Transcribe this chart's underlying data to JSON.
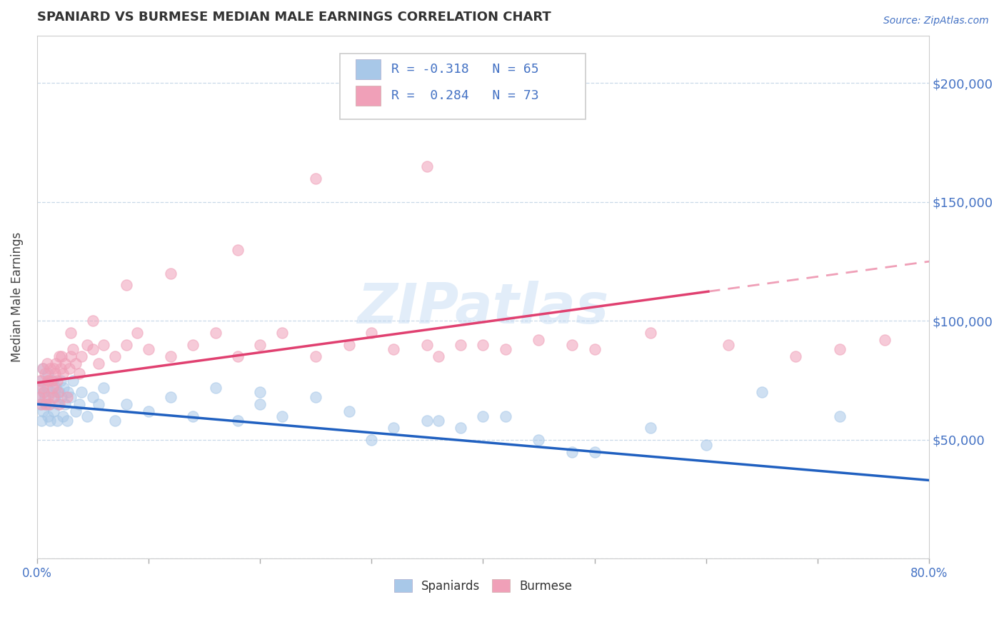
{
  "title": "SPANIARD VS BURMESE MEDIAN MALE EARNINGS CORRELATION CHART",
  "source": "Source: ZipAtlas.com",
  "ylabel": "Median Male Earnings",
  "xlim": [
    0.0,
    80.0
  ],
  "ylim": [
    0,
    220000
  ],
  "yticks": [
    0,
    50000,
    100000,
    150000,
    200000
  ],
  "ytick_labels": [
    "",
    "$50,000",
    "$100,000",
    "$150,000",
    "$200,000"
  ],
  "spaniards_color": "#A8C8E8",
  "burmese_color": "#F0A0B8",
  "spaniards_line_color": "#2060C0",
  "burmese_line_color": "#E04070",
  "spaniards_R": -0.318,
  "spaniards_N": 65,
  "burmese_R": 0.284,
  "burmese_N": 73,
  "watermark": "ZIPatlas",
  "background_color": "#FFFFFF",
  "grid_color": "#C8D8E8",
  "scatter_alpha": 0.55,
  "scatter_size": 120,
  "sp_line_x0": 0,
  "sp_line_y0": 65000,
  "sp_line_x1": 80,
  "sp_line_y1": 33000,
  "bm_line_x0": 0,
  "bm_line_y0": 74000,
  "bm_line_x1": 80,
  "bm_line_y1": 125000,
  "bm_dash_start_x": 60,
  "spaniards_x": [
    0.2,
    0.3,
    0.3,
    0.4,
    0.4,
    0.5,
    0.5,
    0.6,
    0.7,
    0.8,
    0.9,
    1.0,
    1.0,
    1.1,
    1.2,
    1.3,
    1.4,
    1.5,
    1.6,
    1.7,
    1.8,
    1.9,
    2.0,
    2.1,
    2.2,
    2.3,
    2.4,
    2.5,
    2.7,
    2.8,
    3.0,
    3.2,
    3.5,
    3.8,
    4.0,
    4.5,
    5.0,
    5.5,
    6.0,
    7.0,
    8.0,
    10.0,
    12.0,
    14.0,
    16.0,
    18.0,
    20.0,
    22.0,
    25.0,
    28.0,
    32.0,
    36.0,
    40.0,
    45.0,
    50.0,
    55.0,
    60.0,
    20.0,
    30.0,
    35.0,
    38.0,
    42.0,
    48.0,
    65.0,
    72.0
  ],
  "spaniards_y": [
    68000,
    72000,
    65000,
    58000,
    75000,
    62000,
    80000,
    70000,
    68000,
    65000,
    72000,
    60000,
    78000,
    65000,
    58000,
    70000,
    75000,
    62000,
    68000,
    72000,
    58000,
    65000,
    70000,
    75000,
    68000,
    60000,
    72000,
    65000,
    58000,
    70000,
    68000,
    75000,
    62000,
    65000,
    70000,
    60000,
    68000,
    65000,
    72000,
    58000,
    65000,
    62000,
    68000,
    60000,
    72000,
    58000,
    65000,
    60000,
    68000,
    62000,
    55000,
    58000,
    60000,
    50000,
    45000,
    55000,
    48000,
    70000,
    50000,
    58000,
    55000,
    60000,
    45000,
    70000,
    60000
  ],
  "burmese_x": [
    0.2,
    0.3,
    0.4,
    0.5,
    0.5,
    0.6,
    0.7,
    0.8,
    0.9,
    1.0,
    1.0,
    1.1,
    1.2,
    1.3,
    1.4,
    1.5,
    1.6,
    1.7,
    1.8,
    1.9,
    2.0,
    2.1,
    2.2,
    2.3,
    2.5,
    2.7,
    2.9,
    3.0,
    3.2,
    3.5,
    3.8,
    4.0,
    4.5,
    5.0,
    5.5,
    6.0,
    7.0,
    8.0,
    9.0,
    10.0,
    12.0,
    14.0,
    16.0,
    18.0,
    20.0,
    22.0,
    25.0,
    28.0,
    32.0,
    36.0,
    40.0,
    45.0,
    50.0,
    30.0,
    35.0,
    38.0,
    42.0,
    48.0,
    55.0,
    62.0,
    68.0,
    72.0,
    76.0,
    35.0,
    25.0,
    18.0,
    12.0,
    8.0,
    5.0,
    3.0,
    2.0,
    1.5,
    1.0
  ],
  "burmese_y": [
    68000,
    75000,
    65000,
    80000,
    72000,
    70000,
    78000,
    65000,
    82000,
    75000,
    68000,
    65000,
    80000,
    75000,
    72000,
    68000,
    78000,
    82000,
    75000,
    70000,
    65000,
    80000,
    85000,
    78000,
    82000,
    68000,
    80000,
    85000,
    88000,
    82000,
    78000,
    85000,
    90000,
    88000,
    82000,
    90000,
    85000,
    90000,
    95000,
    88000,
    85000,
    90000,
    95000,
    85000,
    90000,
    95000,
    85000,
    90000,
    88000,
    85000,
    90000,
    92000,
    88000,
    95000,
    90000,
    90000,
    88000,
    90000,
    95000,
    90000,
    85000,
    88000,
    92000,
    165000,
    160000,
    130000,
    120000,
    115000,
    100000,
    95000,
    85000,
    80000,
    75000
  ]
}
